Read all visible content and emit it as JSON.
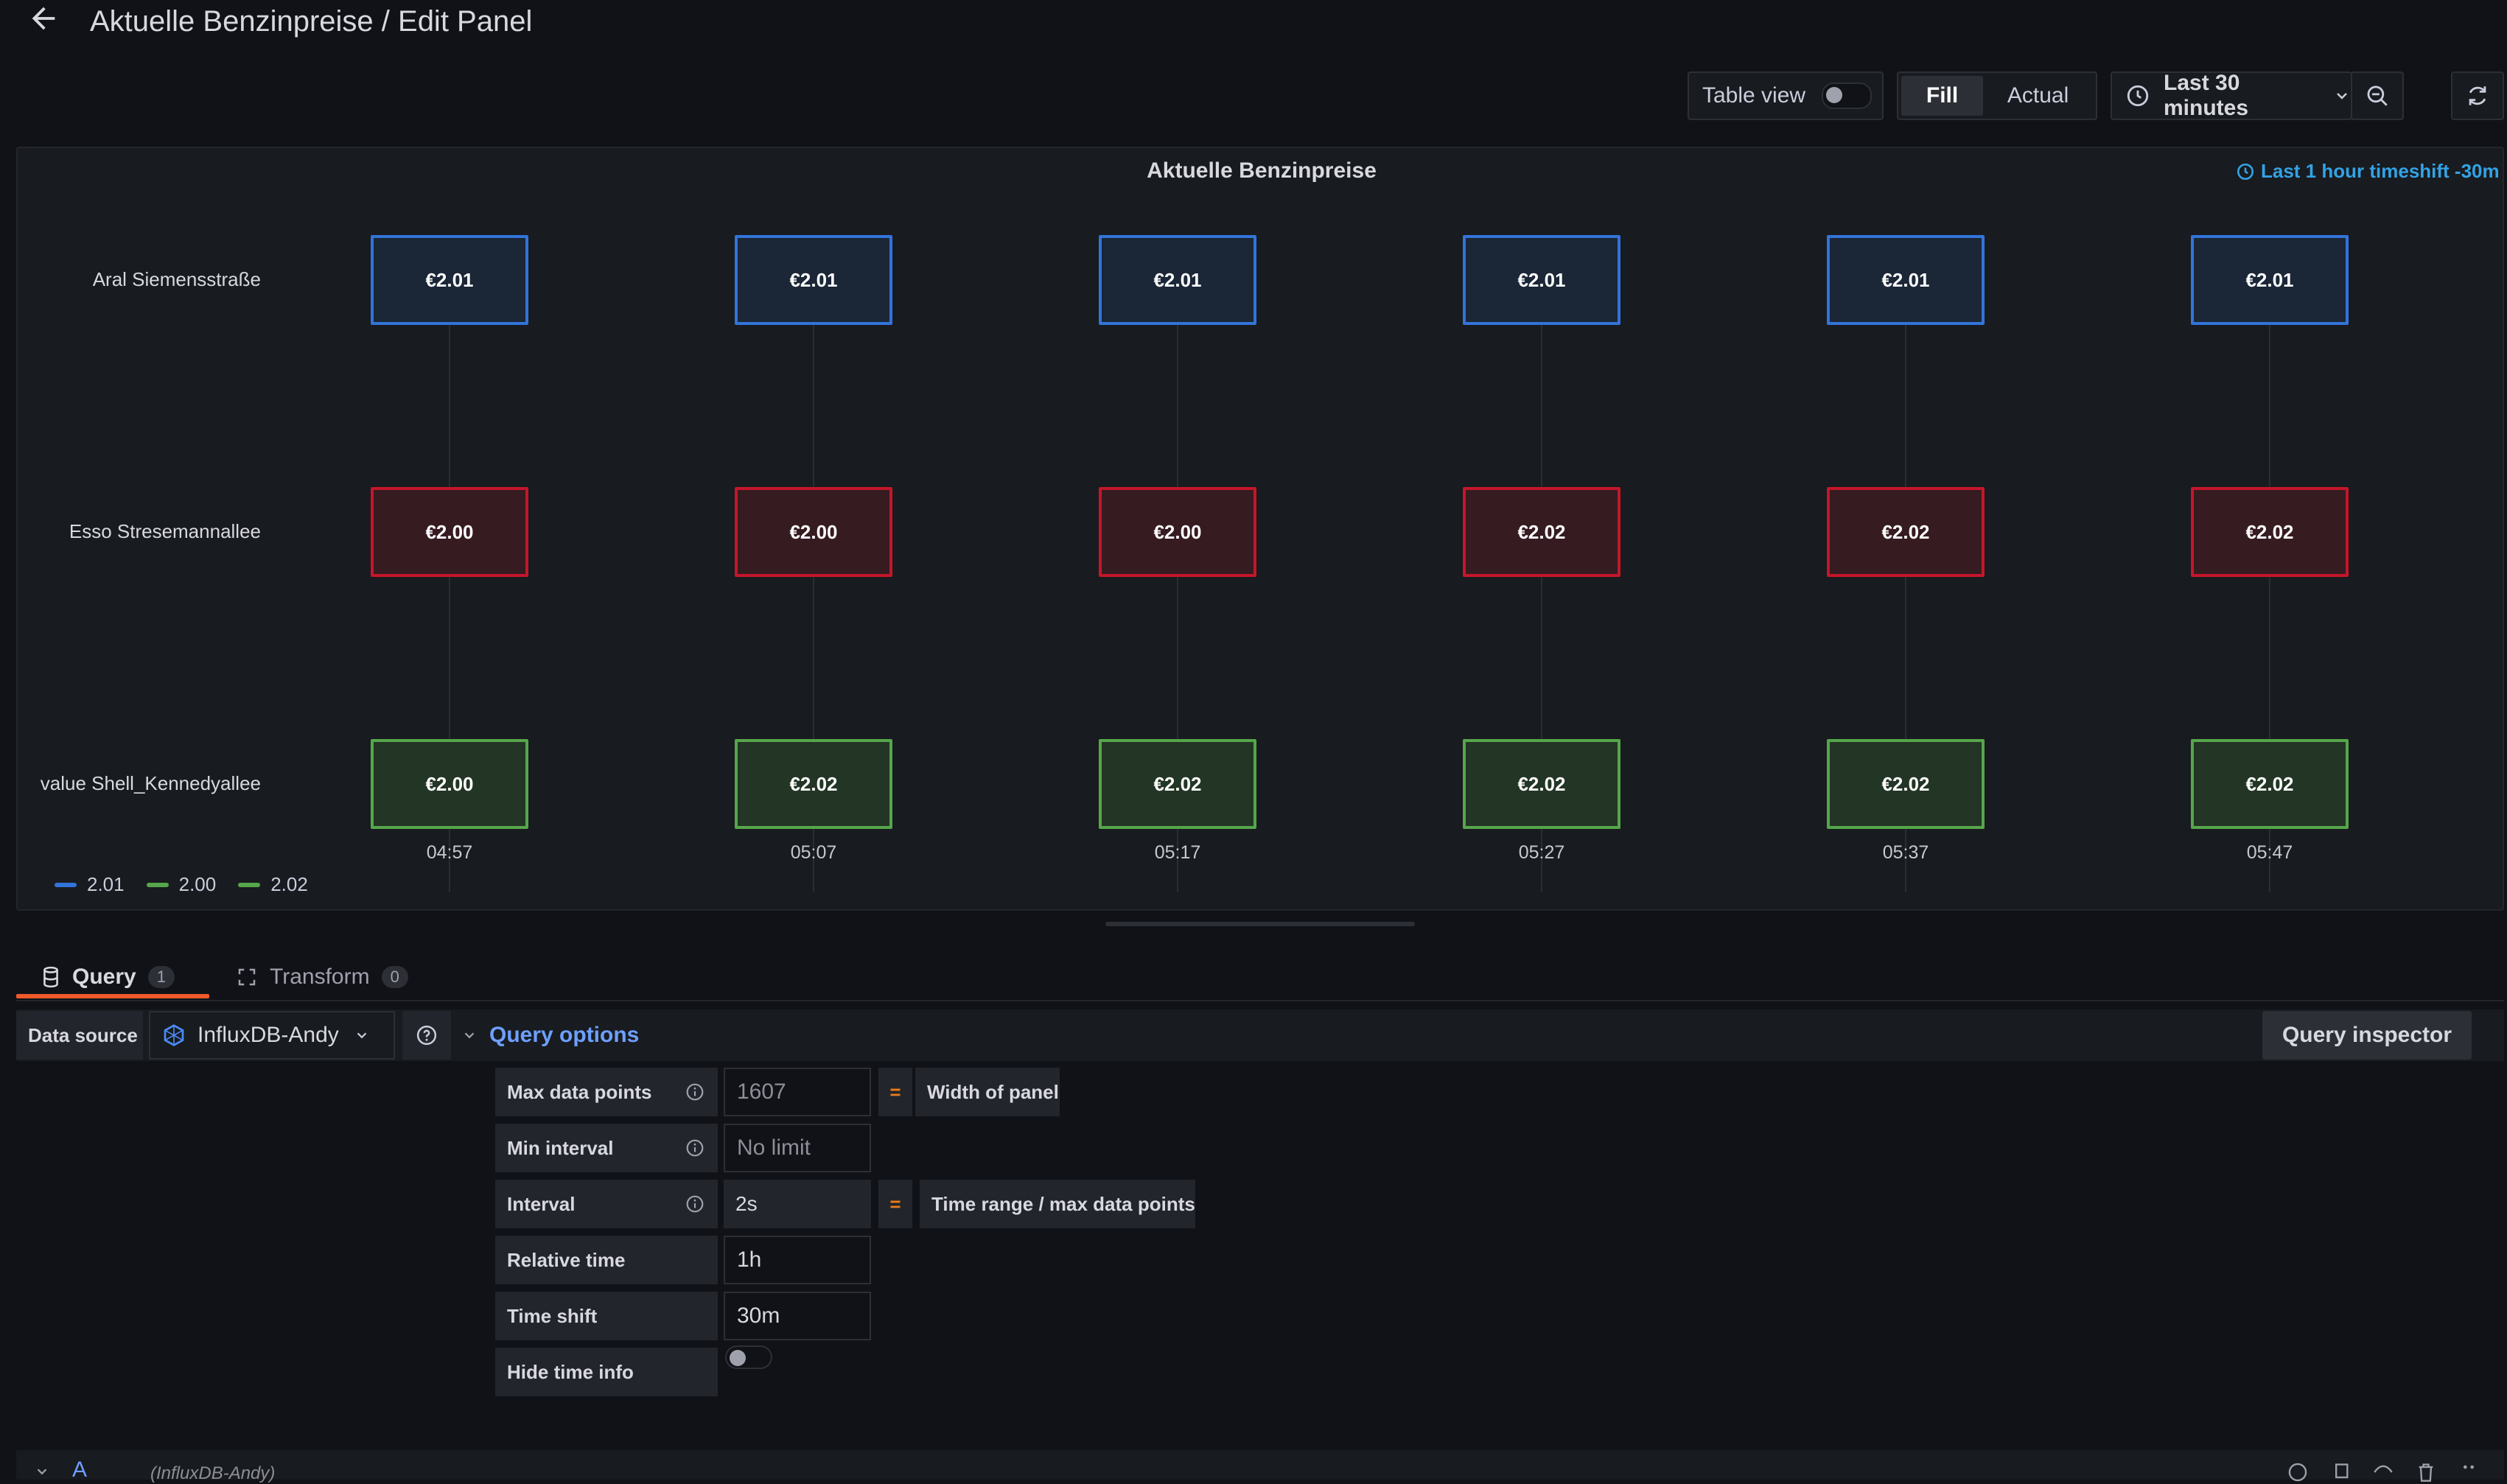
{
  "header": {
    "title": "Aktuelle Benzinpreise / Edit Panel",
    "back_icon": "arrow-left-icon"
  },
  "toolbar": {
    "table_view_label": "Table view",
    "table_view_on": false,
    "fill_label": "Fill",
    "actual_label": "Actual",
    "time_range_label": "Last 30 minutes",
    "icons": [
      "clock-icon",
      "chevron-down-icon",
      "zoom-out-icon",
      "refresh-icon"
    ]
  },
  "panel": {
    "title": "Aktuelle Benzinpreise",
    "timeshift_label": "Last 1 hour timeshift -30m",
    "rows": [
      {
        "label": "Aral Siemensstraße",
        "color": "blue",
        "values": [
          "€2.01",
          "€2.01",
          "€2.01",
          "€2.01",
          "€2.01",
          "€2.01"
        ]
      },
      {
        "label": "Esso Stresemannallee",
        "color": "red",
        "values": [
          "€2.00",
          "€2.00",
          "€2.00",
          "€2.02",
          "€2.02",
          "€2.02"
        ]
      },
      {
        "label": "value Shell_Kennedyallee",
        "color": "green",
        "values": [
          "€2.00",
          "€2.02",
          "€2.02",
          "€2.02",
          "€2.02",
          "€2.02"
        ]
      }
    ],
    "times": [
      "04:57",
      "05:07",
      "05:17",
      "05:27",
      "05:37",
      "05:47"
    ],
    "legend": [
      {
        "label": "2.01",
        "color": "#3274d9"
      },
      {
        "label": "2.00",
        "color": "#56a64b"
      },
      {
        "label": "2.02",
        "color": "#56a64b"
      }
    ],
    "colors": {
      "blue": "#3274d9",
      "red": "#c4162a",
      "green": "#56a64b"
    }
  },
  "editor": {
    "tabs": [
      {
        "label": "Query",
        "count": "1"
      },
      {
        "label": "Transform",
        "count": "0"
      }
    ],
    "data_source_label": "Data source",
    "data_source_value": "InfluxDB-Andy",
    "query_options_label": "Query options",
    "query_inspector_label": "Query inspector",
    "options": {
      "max_data_points": {
        "label": "Max data points",
        "placeholder": "1607",
        "eq": "=",
        "note": "Width of panel"
      },
      "min_interval": {
        "label": "Min interval",
        "placeholder": "No limit"
      },
      "interval": {
        "label": "Interval",
        "value": "2s",
        "eq": "=",
        "note": "Time range / max data points"
      },
      "relative_time": {
        "label": "Relative time",
        "value": "1h"
      },
      "time_shift": {
        "label": "Time shift",
        "value": "30m"
      },
      "hide_time_info": {
        "label": "Hide time info",
        "on": false
      }
    },
    "query_row": {
      "ref": "A",
      "source": "(InfluxDB-Andy)"
    }
  }
}
